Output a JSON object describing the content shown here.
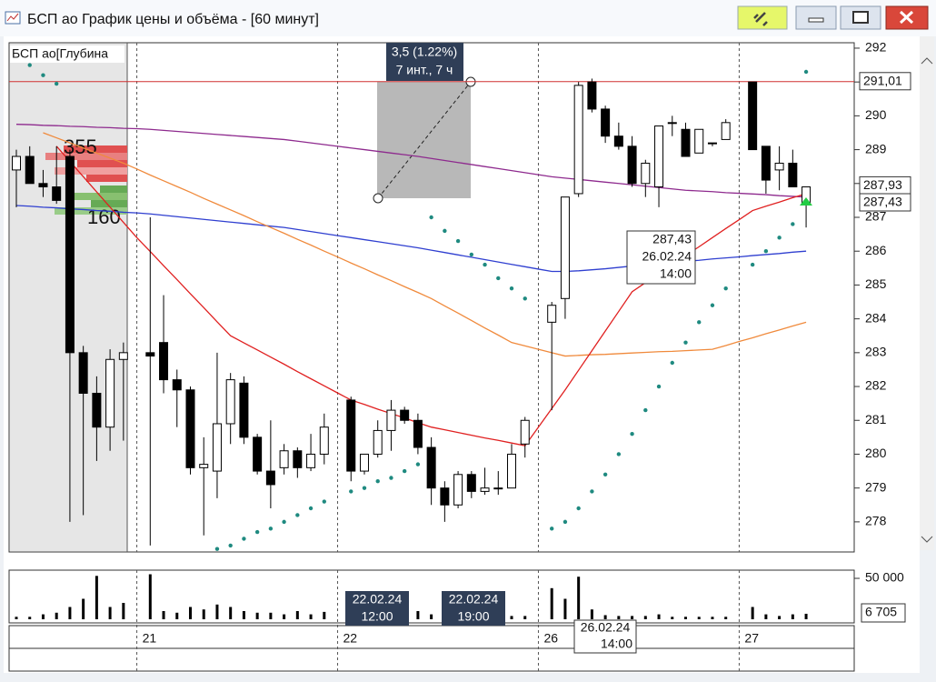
{
  "window": {
    "title": "БСП ао График цены и объёма - [60 минут]"
  },
  "depth": {
    "title": "БСП ао[Глубина",
    "ask": "355",
    "bid": "160"
  },
  "measure": {
    "change": "3,5 (1.22%)",
    "span": "7 инт., 7 ч"
  },
  "cursor": {
    "price": "287,43",
    "date": "26.02.24",
    "time": "14:00"
  },
  "markers": [
    {
      "date": "22.02.24",
      "time": "12:00"
    },
    {
      "date": "22.02.24",
      "time": "19:00"
    }
  ],
  "date_cursor": {
    "date": "26.02.24",
    "time": "14:00"
  },
  "chart_data": [
    {
      "type": "candlestick",
      "categories": [
        null,
        null,
        null,
        null,
        null,
        null,
        null,
        null,
        null,
        "21",
        null,
        null,
        null,
        null,
        null,
        null,
        null,
        null,
        null,
        null,
        null,
        null,
        null,
        null,
        "22",
        null,
        null,
        null,
        null,
        null,
        null,
        null,
        null,
        null,
        null,
        null,
        null,
        null,
        null,
        "26",
        null,
        null,
        null,
        null,
        null,
        null,
        null,
        null,
        null,
        null,
        null,
        null,
        null,
        null,
        "27",
        null,
        null,
        null,
        null,
        null
      ],
      "open": [
        288.4,
        288.8,
        288.0,
        287.9,
        288.8,
        283.0,
        281.8,
        280.8,
        282.8,
        null,
        283.0,
        283.3,
        282.2,
        281.9,
        279.6,
        279.5,
        280.9,
        282.1,
        280.5,
        279.5,
        279.6,
        280.1,
        279.6,
        280.0,
        null,
        281.6,
        279.5,
        280.0,
        280.7,
        281.3,
        281.0,
        280.2,
        279.0,
        278.5,
        279.4,
        278.9,
        279.0,
        279.0,
        280.3,
        null,
        283.9,
        284.6,
        287.7,
        291.0,
        290.2,
        289.4,
        289.1,
        288.0,
        287.9,
        289.8,
        289.6,
        288.9,
        289.2,
        289.3,
        null,
        291.0,
        289.1,
        288.4,
        288.6,
        287.4
      ],
      "high": [
        289.0,
        289.1,
        288.4,
        289.1,
        289.0,
        283.2,
        282.3,
        283.1,
        283.3,
        null,
        287.0,
        284.7,
        282.5,
        282.0,
        280.5,
        283.0,
        282.4,
        282.3,
        280.6,
        281.0,
        280.3,
        280.2,
        280.6,
        281.2,
        null,
        281.7,
        280.0,
        281.0,
        281.6,
        281.4,
        281.2,
        280.5,
        279.2,
        279.5,
        279.5,
        279.6,
        279.5,
        280.3,
        281.1,
        null,
        284.5,
        287.6,
        291.0,
        291.1,
        290.3,
        289.8,
        289.4,
        288.7,
        289.7,
        290.0,
        289.8,
        289.6,
        289.2,
        289.9,
        null,
        291.0,
        289.1,
        289.1,
        289.0,
        287.9
      ],
      "low": [
        287.3,
        288.0,
        287.6,
        287.4,
        278.0,
        278.2,
        279.8,
        280.1,
        280.4,
        null,
        277.3,
        281.8,
        280.8,
        279.4,
        277.6,
        278.7,
        280.3,
        280.3,
        279.4,
        278.4,
        279.4,
        279.3,
        279.5,
        279.7,
        null,
        279.2,
        279.4,
        279.9,
        280.1,
        280.9,
        280.0,
        278.5,
        278.0,
        278.4,
        278.7,
        278.8,
        278.8,
        279.0,
        279.9,
        null,
        281.3,
        284.0,
        287.6,
        290.1,
        289.2,
        289.0,
        287.9,
        287.6,
        287.3,
        289.4,
        288.8,
        288.9,
        289.1,
        289.3,
        null,
        289.0,
        287.7,
        287.8,
        287.9,
        286.7
      ],
      "close": [
        288.8,
        288.0,
        287.9,
        287.5,
        283.0,
        281.8,
        280.8,
        282.8,
        283.0,
        null,
        282.9,
        282.2,
        281.9,
        279.6,
        279.7,
        280.9,
        282.2,
        280.5,
        279.5,
        279.1,
        280.1,
        279.6,
        280.0,
        280.8,
        null,
        279.5,
        280.0,
        280.7,
        281.3,
        281.0,
        280.2,
        279.0,
        278.5,
        279.4,
        278.9,
        279.0,
        279.0,
        280.0,
        281.0,
        null,
        284.4,
        287.6,
        290.9,
        290.2,
        289.4,
        289.1,
        288.0,
        288.6,
        289.7,
        289.8,
        288.8,
        289.6,
        289.2,
        289.8,
        null,
        289.0,
        288.1,
        288.6,
        287.9,
        287.9
      ],
      "lines": [
        {
          "color": "#8e2a8e",
          "values": [
            289.75,
            289.74,
            289.72,
            289.71,
            289.69,
            289.68,
            289.66,
            289.65,
            289.63,
            289.62,
            289.6,
            289.57,
            289.54,
            289.51,
            289.48,
            289.45,
            289.42,
            289.39,
            289.36,
            289.33,
            289.3,
            289.25,
            289.2,
            289.15,
            289.1,
            289.05,
            289.0,
            288.95,
            288.9,
            288.85,
            288.8,
            288.74,
            288.68,
            288.62,
            288.56,
            288.5,
            288.44,
            288.38,
            288.32,
            288.26,
            288.2,
            288.16,
            288.12,
            288.08,
            288.04,
            288.0,
            287.96,
            287.92,
            287.88,
            287.84,
            287.8,
            287.78,
            287.76,
            287.73,
            287.71,
            287.69,
            287.67,
            287.64,
            287.62,
            287.6
          ]
        },
        {
          "color": "#2f3fd0",
          "values": [
            287.35,
            287.33,
            287.3,
            287.28,
            287.25,
            287.23,
            287.2,
            287.18,
            287.15,
            287.13,
            287.1,
            287.06,
            287.02,
            286.98,
            286.94,
            286.9,
            286.86,
            286.82,
            286.78,
            286.74,
            286.7,
            286.64,
            286.58,
            286.52,
            286.46,
            286.4,
            286.34,
            286.28,
            286.22,
            286.16,
            286.1,
            286.03,
            285.96,
            285.89,
            285.82,
            285.75,
            285.68,
            285.61,
            285.54,
            285.47,
            285.4,
            285.4,
            285.42,
            285.45,
            285.48,
            285.52,
            285.56,
            285.6,
            285.64,
            285.67,
            285.7,
            285.73,
            285.77,
            285.8,
            285.83,
            285.87,
            285.9,
            285.93,
            285.97,
            286.0
          ]
        },
        {
          "color": "#f08a3c",
          "values": [
            null,
            null,
            289.5,
            289.35,
            289.2,
            289.05,
            288.9,
            288.75,
            288.6,
            288.43,
            288.25,
            288.08,
            287.91,
            287.74,
            287.56,
            287.39,
            287.22,
            287.05,
            286.87,
            286.7,
            286.53,
            286.35,
            286.18,
            286.0,
            285.83,
            285.65,
            285.48,
            285.3,
            285.13,
            284.95,
            284.78,
            284.6,
            284.38,
            284.17,
            283.95,
            283.73,
            283.52,
            283.3,
            283.2,
            283.1,
            283.0,
            282.9,
            282.92,
            282.94,
            282.95,
            282.97,
            282.99,
            283.01,
            283.03,
            283.04,
            283.06,
            283.08,
            283.1,
            283.21,
            283.33,
            283.44,
            283.56,
            283.67,
            283.79,
            283.9
          ]
        },
        {
          "color": "#e02020",
          "values": [
            null,
            null,
            null,
            289.1,
            288.65,
            288.2,
            287.75,
            287.3,
            286.85,
            286.4,
            285.99,
            285.57,
            285.16,
            284.74,
            284.33,
            283.91,
            283.5,
            283.29,
            283.08,
            282.87,
            282.66,
            282.44,
            282.23,
            282.02,
            281.81,
            281.6,
            281.47,
            281.33,
            281.2,
            281.07,
            280.93,
            280.8,
            280.72,
            280.64,
            280.56,
            280.48,
            280.41,
            280.33,
            280.25,
            280.8,
            281.35,
            281.9,
            282.48,
            283.06,
            283.64,
            284.22,
            284.8,
            285.07,
            285.33,
            285.6,
            285.87,
            286.13,
            286.4,
            286.67,
            286.93,
            287.2,
            287.33,
            287.45,
            287.58,
            287.7
          ]
        }
      ],
      "sar": {
        "color": "#1f8a80",
        "values": [
          null,
          291.5,
          291.2,
          290.95,
          null,
          null,
          null,
          null,
          null,
          null,
          null,
          null,
          null,
          null,
          null,
          277.2,
          277.3,
          277.5,
          277.7,
          277.8,
          278.0,
          278.2,
          278.4,
          278.6,
          null,
          278.9,
          279.0,
          279.2,
          279.3,
          279.5,
          279.7,
          287.0,
          286.6,
          286.3,
          285.9,
          285.6,
          285.2,
          284.9,
          284.6,
          null,
          277.8,
          278.0,
          278.4,
          278.9,
          279.4,
          280.0,
          280.6,
          281.3,
          282.0,
          282.7,
          283.3,
          283.9,
          284.4,
          284.9,
          null,
          285.6,
          286.0,
          286.4,
          286.8,
          291.3
        ]
      },
      "ylim": [
        277.11,
        292.16
      ],
      "yticks": [
        278,
        279,
        280,
        281,
        282,
        283,
        284,
        285,
        286,
        287,
        288,
        289,
        290,
        291,
        292
      ],
      "price_labels": [
        {
          "value": 291.01,
          "label": "291,01"
        },
        {
          "value": 287.93,
          "label": "287,93"
        },
        {
          "value": 287.43,
          "label": "287,43"
        }
      ]
    },
    {
      "type": "bar",
      "color": "#000000",
      "values": [
        3000,
        3000,
        6000,
        8000,
        15000,
        25000,
        53000,
        15000,
        20000,
        null,
        55000,
        10000,
        8000,
        15000,
        12000,
        18000,
        15000,
        10000,
        8000,
        8000,
        6000,
        10000,
        6000,
        9000,
        null,
        12000,
        8000,
        6000,
        6000,
        4000,
        10000,
        6000,
        6000,
        4000,
        4000,
        3000,
        3000,
        4000,
        4000,
        null,
        38000,
        25000,
        52000,
        12000,
        5000,
        4000,
        4000,
        4000,
        6000,
        3000,
        3000,
        3000,
        3000,
        3000,
        null,
        15000,
        6000,
        4000,
        6000,
        6705
      ],
      "value_labels": [
        null,
        null,
        null,
        null,
        null,
        null,
        null,
        null,
        null,
        null,
        null,
        null,
        null,
        null,
        null,
        null,
        null,
        null,
        null,
        null,
        null,
        null,
        null,
        null,
        null,
        null,
        null,
        null,
        null,
        null,
        null,
        null,
        null,
        null,
        null,
        null,
        null,
        null,
        null,
        null,
        null,
        null,
        null,
        null,
        null,
        null,
        null,
        null,
        null,
        null,
        null,
        null,
        null,
        null,
        null,
        null,
        null,
        null,
        null,
        "6 705"
      ],
      "ylim": [
        0,
        57800
      ],
      "yticks": [
        {
          "value": 50000,
          "label": "50 000"
        }
      ]
    }
  ]
}
